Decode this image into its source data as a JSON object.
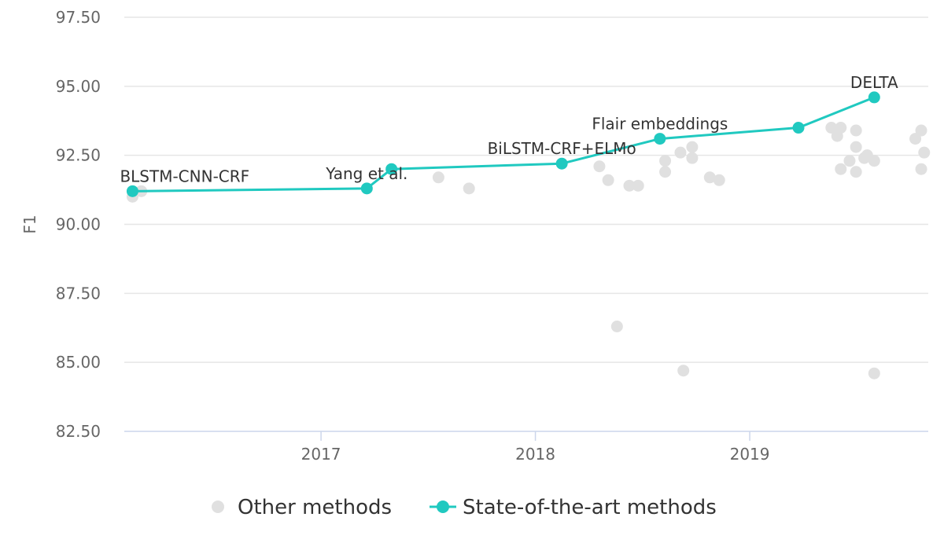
{
  "chart_data": {
    "type": "scatter",
    "ylabel": "F1",
    "ylim": [
      82.5,
      97.5
    ],
    "yticks": [
      "82.50",
      "85.00",
      "87.50",
      "90.00",
      "92.50",
      "95.00",
      "97.50"
    ],
    "ytick_values": [
      82.5,
      85.0,
      87.5,
      90.0,
      92.5,
      95.0,
      97.5
    ],
    "xlim": [
      "2016-02-01",
      "2019-11-01"
    ],
    "xticks": [
      "2017",
      "2018",
      "2019"
    ],
    "xtick_values": [
      "2017-01-01",
      "2018-01-01",
      "2019-01-01"
    ],
    "grid": "horizontal",
    "legend_position": "bottom-center",
    "series": [
      {
        "name": "Other methods",
        "color": "#e0e0e0",
        "points": [
          {
            "x": "2016-02-15",
            "y": 91.0
          },
          {
            "x": "2016-03-01",
            "y": 91.2
          },
          {
            "x": "2017-07-20",
            "y": 91.7
          },
          {
            "x": "2017-09-10",
            "y": 91.3
          },
          {
            "x": "2018-04-20",
            "y": 92.1
          },
          {
            "x": "2018-05-05",
            "y": 91.6
          },
          {
            "x": "2018-05-20",
            "y": 86.3
          },
          {
            "x": "2018-06-10",
            "y": 91.4
          },
          {
            "x": "2018-06-25",
            "y": 91.4
          },
          {
            "x": "2018-08-10",
            "y": 92.3
          },
          {
            "x": "2018-08-10",
            "y": 91.9
          },
          {
            "x": "2018-09-05",
            "y": 92.6
          },
          {
            "x": "2018-09-10",
            "y": 84.7
          },
          {
            "x": "2018-09-25",
            "y": 92.8
          },
          {
            "x": "2018-09-25",
            "y": 92.4
          },
          {
            "x": "2018-10-25",
            "y": 91.7
          },
          {
            "x": "2018-11-10",
            "y": 91.6
          },
          {
            "x": "2019-05-20",
            "y": 93.5
          },
          {
            "x": "2019-05-30",
            "y": 93.2
          },
          {
            "x": "2019-06-05",
            "y": 93.5
          },
          {
            "x": "2019-06-05",
            "y": 92.0
          },
          {
            "x": "2019-06-20",
            "y": 92.3
          },
          {
            "x": "2019-07-01",
            "y": 93.4
          },
          {
            "x": "2019-07-01",
            "y": 92.8
          },
          {
            "x": "2019-07-01",
            "y": 91.9
          },
          {
            "x": "2019-07-15",
            "y": 92.4
          },
          {
            "x": "2019-07-20",
            "y": 92.5
          },
          {
            "x": "2019-08-01",
            "y": 92.3
          },
          {
            "x": "2019-08-01",
            "y": 84.6
          },
          {
            "x": "2019-10-10",
            "y": 93.1
          },
          {
            "x": "2019-10-20",
            "y": 93.4
          },
          {
            "x": "2019-10-20",
            "y": 92.0
          },
          {
            "x": "2019-10-25",
            "y": 92.6
          }
        ]
      },
      {
        "name": "State-of-the-art methods",
        "color": "#20c9c0",
        "points": [
          {
            "x": "2016-02-15",
            "y": 91.2,
            "label": "BLSTM-CNN-CRF"
          },
          {
            "x": "2017-03-20",
            "y": 91.3,
            "label": "Yang et al."
          },
          {
            "x": "2017-05-01",
            "y": 92.0,
            "label": ""
          },
          {
            "x": "2018-02-15",
            "y": 92.2,
            "label": "BiLSTM-CRF+ELMo"
          },
          {
            "x": "2018-08-01",
            "y": 93.1,
            "label": "Flair embeddings"
          },
          {
            "x": "2019-03-25",
            "y": 93.5,
            "label": ""
          },
          {
            "x": "2019-08-01",
            "y": 94.6,
            "label": "DELTA"
          }
        ]
      }
    ]
  }
}
